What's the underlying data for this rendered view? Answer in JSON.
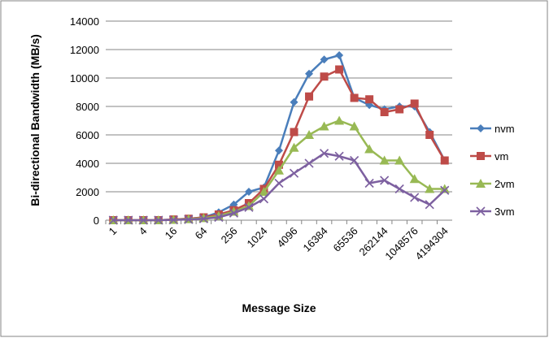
{
  "chart_data": {
    "type": "line",
    "x_label": "Message Size",
    "y_label": "Bi-directional Bandwidth (MB/s)",
    "categories": [
      "1",
      null,
      "4",
      null,
      "16",
      null,
      "64",
      null,
      "256",
      null,
      "1024",
      null,
      "4096",
      null,
      "16384",
      null,
      "65536",
      null,
      "262144",
      null,
      "1048576",
      null,
      "4194304"
    ],
    "ylim": [
      0,
      14000
    ],
    "yticks": [
      0,
      2000,
      4000,
      6000,
      8000,
      10000,
      12000,
      14000
    ],
    "grid": true,
    "legend": "right",
    "series": [
      {
        "name": "nvm",
        "color": "#4a7ebb",
        "marker": "diamond",
        "values": [
          0,
          0,
          0,
          0,
          50,
          100,
          200,
          550,
          1100,
          2000,
          2300,
          4900,
          8300,
          10300,
          11300,
          11600,
          8600,
          8100,
          7800,
          8000,
          8000,
          6200,
          4200
        ]
      },
      {
        "name": "vm",
        "color": "#be4b48",
        "marker": "square",
        "values": [
          0,
          0,
          0,
          0,
          50,
          100,
          200,
          400,
          700,
          1200,
          2200,
          3900,
          6200,
          8700,
          10100,
          10600,
          8600,
          8500,
          7600,
          7800,
          8200,
          6000,
          4200
        ]
      },
      {
        "name": "2vm",
        "color": "#98b954",
        "marker": "triangle",
        "values": [
          0,
          0,
          0,
          0,
          30,
          80,
          150,
          300,
          600,
          1000,
          2000,
          3500,
          5100,
          6000,
          6600,
          7000,
          6600,
          5000,
          4200,
          4200,
          2900,
          2200,
          2200
        ]
      },
      {
        "name": "3vm",
        "color": "#7d60a0",
        "marker": "x",
        "values": [
          0,
          0,
          0,
          0,
          20,
          50,
          100,
          200,
          500,
          900,
          1500,
          2600,
          3300,
          4000,
          4700,
          4500,
          4200,
          2600,
          2800,
          2200,
          1600,
          1100,
          2100
        ]
      }
    ]
  }
}
